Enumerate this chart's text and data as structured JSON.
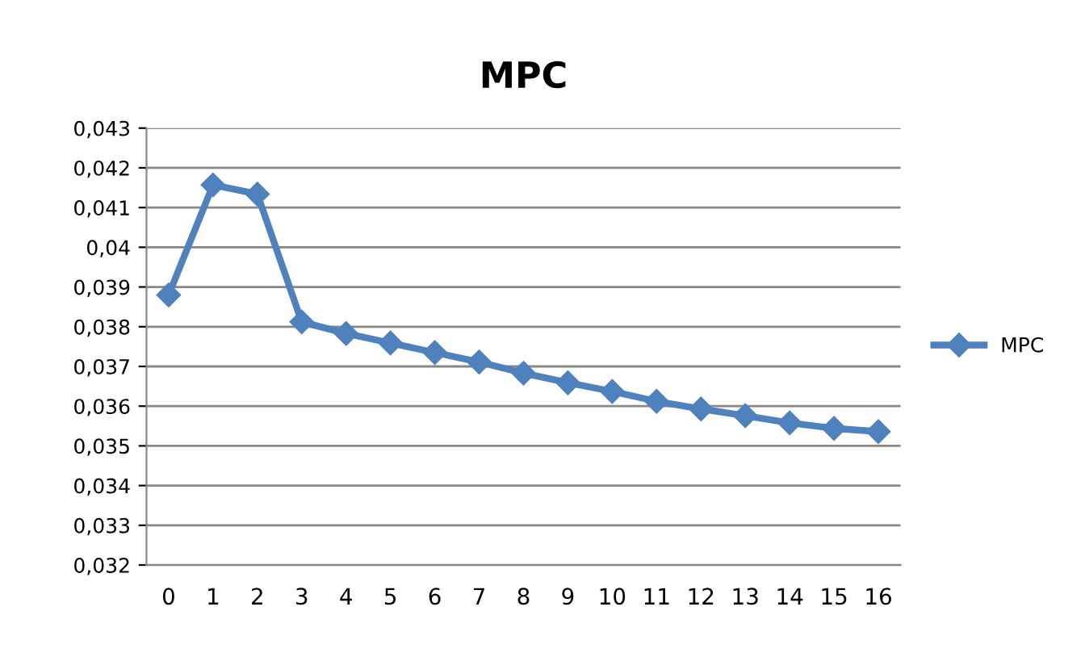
{
  "chart_data": {
    "type": "line",
    "title": "MPC",
    "categories": [
      "0",
      "1",
      "2",
      "3",
      "4",
      "5",
      "6",
      "7",
      "8",
      "9",
      "10",
      "11",
      "12",
      "13",
      "14",
      "15",
      "16"
    ],
    "series": [
      {
        "name": "MPC",
        "color": "#4f81bd",
        "values": [
          0.0388,
          0.04157,
          0.04134,
          0.03812,
          0.03783,
          0.03759,
          0.03735,
          0.03711,
          0.03683,
          0.03659,
          0.03637,
          0.03612,
          0.03593,
          0.03576,
          0.03558,
          0.03544,
          0.03536
        ]
      }
    ],
    "ylim": [
      0.032,
      0.043
    ],
    "yticks": [
      {
        "value": 0.032,
        "label": "0,032"
      },
      {
        "value": 0.033,
        "label": "0,033"
      },
      {
        "value": 0.034,
        "label": "0,034"
      },
      {
        "value": 0.035,
        "label": "0,035"
      },
      {
        "value": 0.036,
        "label": "0,036"
      },
      {
        "value": 0.037,
        "label": "0,037"
      },
      {
        "value": 0.038,
        "label": "0,038"
      },
      {
        "value": 0.039,
        "label": "0,039"
      },
      {
        "value": 0.04,
        "label": "0,04"
      },
      {
        "value": 0.041,
        "label": "0,041"
      },
      {
        "value": 0.042,
        "label": "0,042"
      },
      {
        "value": 0.043,
        "label": "0,043"
      }
    ],
    "grid": "y",
    "legend": "right",
    "marker": "diamond",
    "line_style": "solid"
  }
}
